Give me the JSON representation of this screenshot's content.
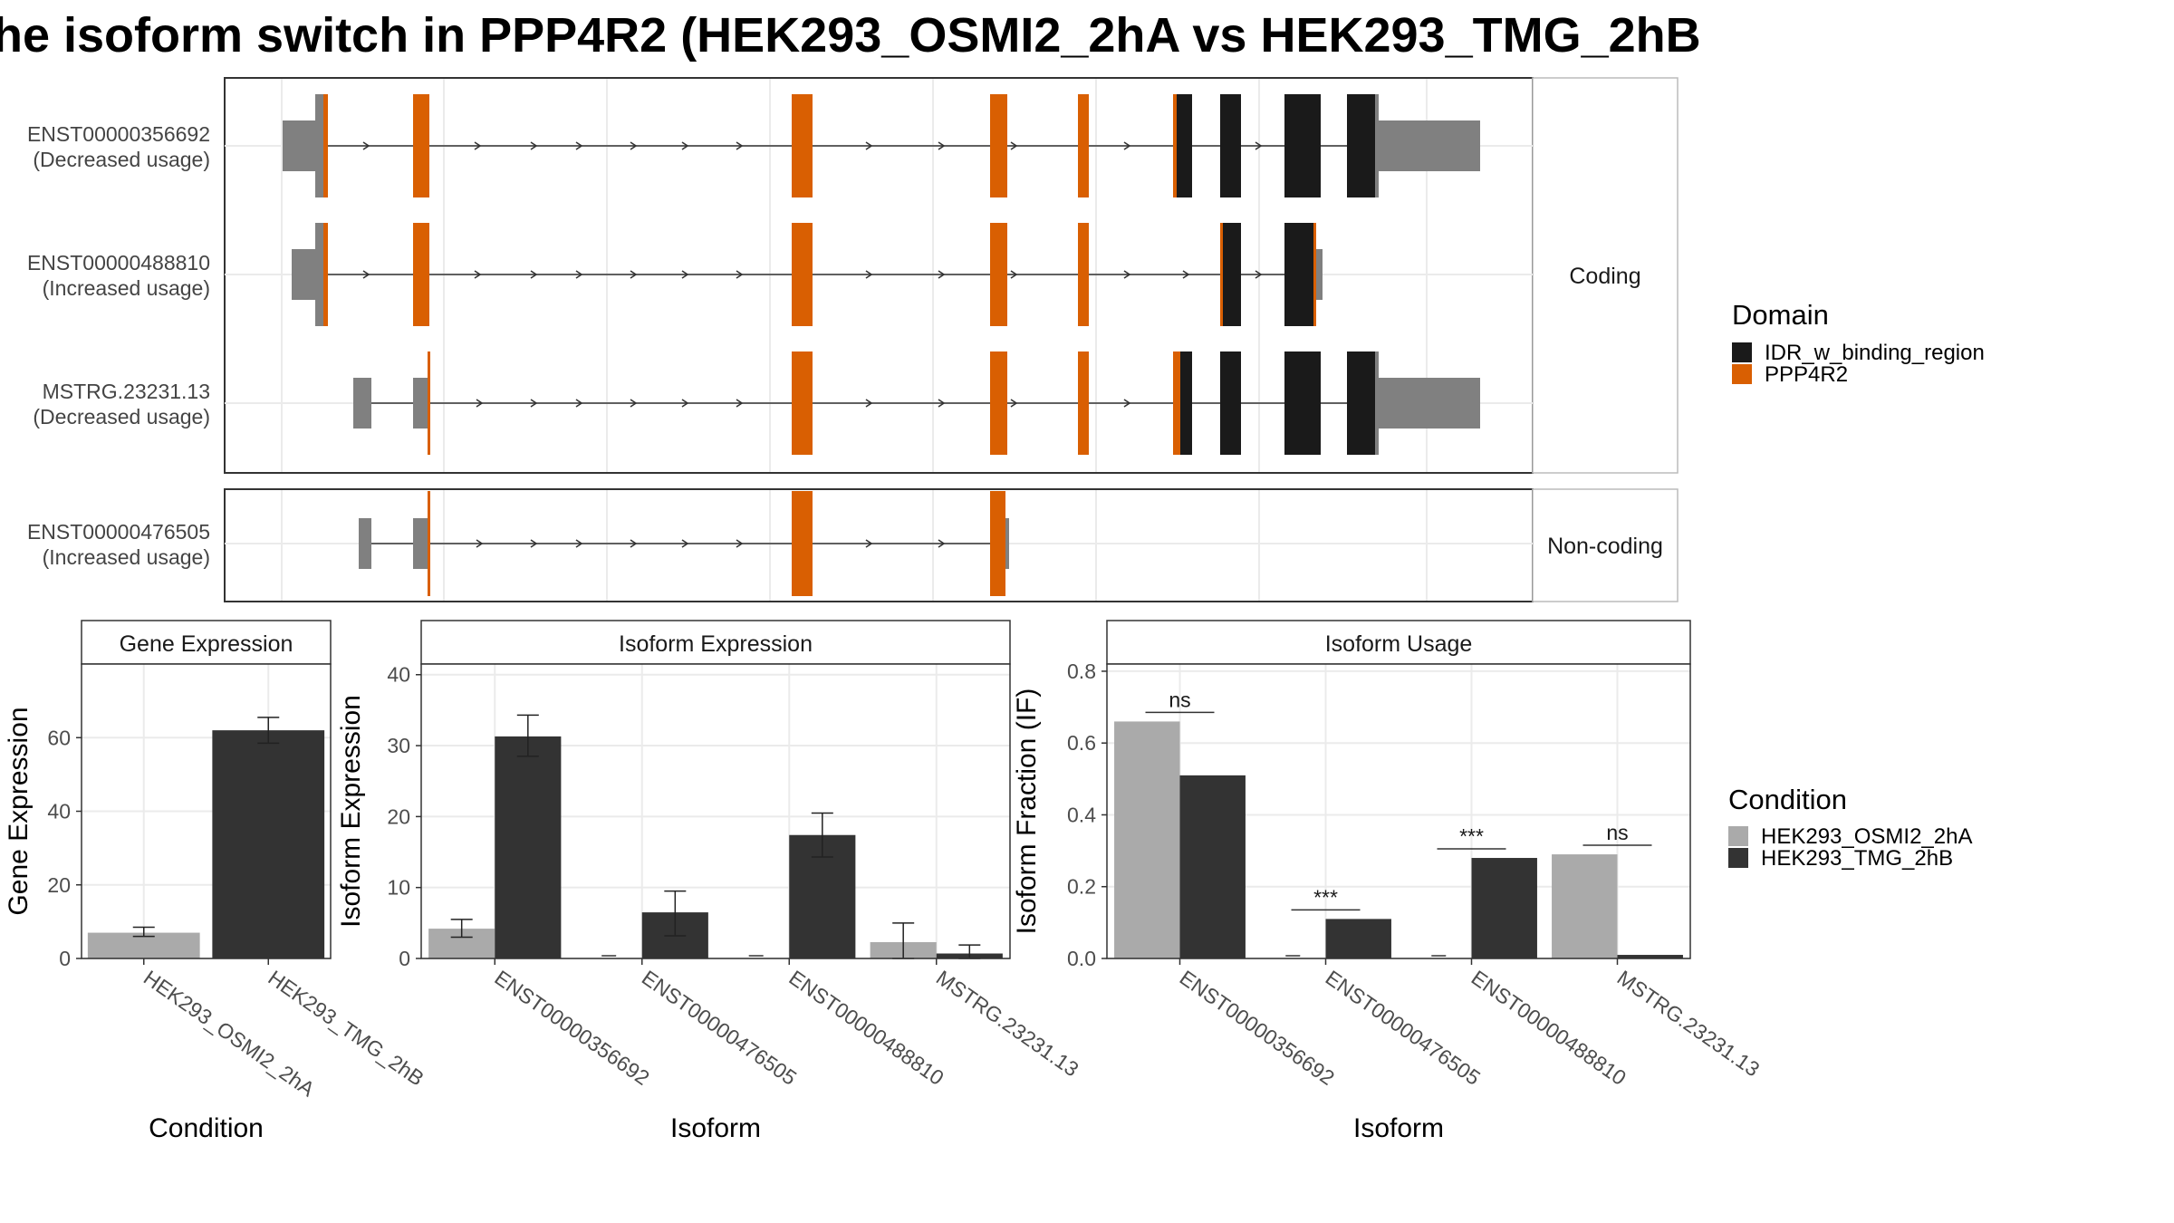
{
  "title": "he isoform switch in PPP4R2 (HEK293_OSMI2_2hA vs HEK293_TMG_2hB",
  "colors": {
    "orange": "#d95f02",
    "black": "#1a1a1a",
    "gray_exon": "#808080",
    "cond_a": "#aaaaaa",
    "cond_b": "#333333",
    "strip_bg": "#ffffff",
    "grid": "#ebebeb"
  },
  "transcript_panel": {
    "facets": [
      "Coding",
      "Non-coding"
    ],
    "rows": [
      {
        "id": "ENST00000356692",
        "usage": "(Decreased usage)",
        "facet": "Coding"
      },
      {
        "id": "ENST00000488810",
        "usage": "(Increased usage)",
        "facet": "Coding"
      },
      {
        "id": "MSTRG.23231.13",
        "usage": "(Decreased usage)",
        "facet": "Coding"
      },
      {
        "id": "ENST00000476505",
        "usage": "(Increased usage)",
        "facet": "Non-coding"
      }
    ]
  },
  "legends": {
    "domain": {
      "title": "Domain",
      "items": [
        "IDR_w_binding_region",
        "PPP4R2"
      ]
    },
    "condition": {
      "title": "Condition",
      "items": [
        "HEK293_OSMI2_2hA",
        "HEK293_TMG_2hB"
      ]
    }
  },
  "chart_data": [
    {
      "type": "bar",
      "title": "Gene Expression",
      "xlabel": "Condition",
      "ylabel": "Gene Expression",
      "ylim": [
        0,
        80
      ],
      "yticks": [
        0,
        20,
        40,
        60
      ],
      "categories": [
        "HEK293_OSMI2_2hA",
        "HEK293_TMG_2hB"
      ],
      "values": [
        7,
        62
      ],
      "errors": [
        [
          6,
          8.5
        ],
        [
          58.5,
          65.5
        ]
      ]
    },
    {
      "type": "bar",
      "title": "Isoform Expression",
      "xlabel": "Isoform",
      "ylabel": "Isoform Expression",
      "ylim": [
        0,
        41.5
      ],
      "yticks": [
        0,
        10,
        20,
        30,
        40
      ],
      "categories": [
        "ENST00000356692",
        "ENST00000476505",
        "ENST00000488810",
        "MSTRG.23231.13"
      ],
      "series": [
        {
          "name": "HEK293_OSMI2_2hA",
          "values": [
            4.2,
            0,
            0,
            2.3
          ],
          "errors": [
            [
              3,
              5.5
            ],
            [
              0,
              0
            ],
            [
              0,
              0
            ],
            [
              0,
              5
            ]
          ]
        },
        {
          "name": "HEK293_TMG_2hB",
          "values": [
            31.3,
            6.5,
            17.4,
            0.7
          ],
          "errors": [
            [
              28.5,
              34.3
            ],
            [
              3.2,
              9.5
            ],
            [
              14.3,
              20.5
            ],
            [
              0,
              1.9
            ]
          ]
        }
      ]
    },
    {
      "type": "bar",
      "title": "Isoform Usage",
      "xlabel": "Isoform",
      "ylabel": "Isoform Fraction (IF)",
      "ylim": [
        0,
        0.82
      ],
      "yticks": [
        "0.0",
        "0.2",
        "0.4",
        "0.6",
        "0.8"
      ],
      "categories": [
        "ENST00000356692",
        "ENST00000476505",
        "ENST00000488810",
        "MSTRG.23231.13"
      ],
      "series": [
        {
          "name": "HEK293_OSMI2_2hA",
          "values": [
            0.66,
            0,
            0,
            0.29
          ]
        },
        {
          "name": "HEK293_TMG_2hB",
          "values": [
            0.51,
            0.11,
            0.28,
            0.01
          ]
        }
      ],
      "annotations": [
        "ns",
        "***",
        "***",
        "ns"
      ]
    }
  ]
}
